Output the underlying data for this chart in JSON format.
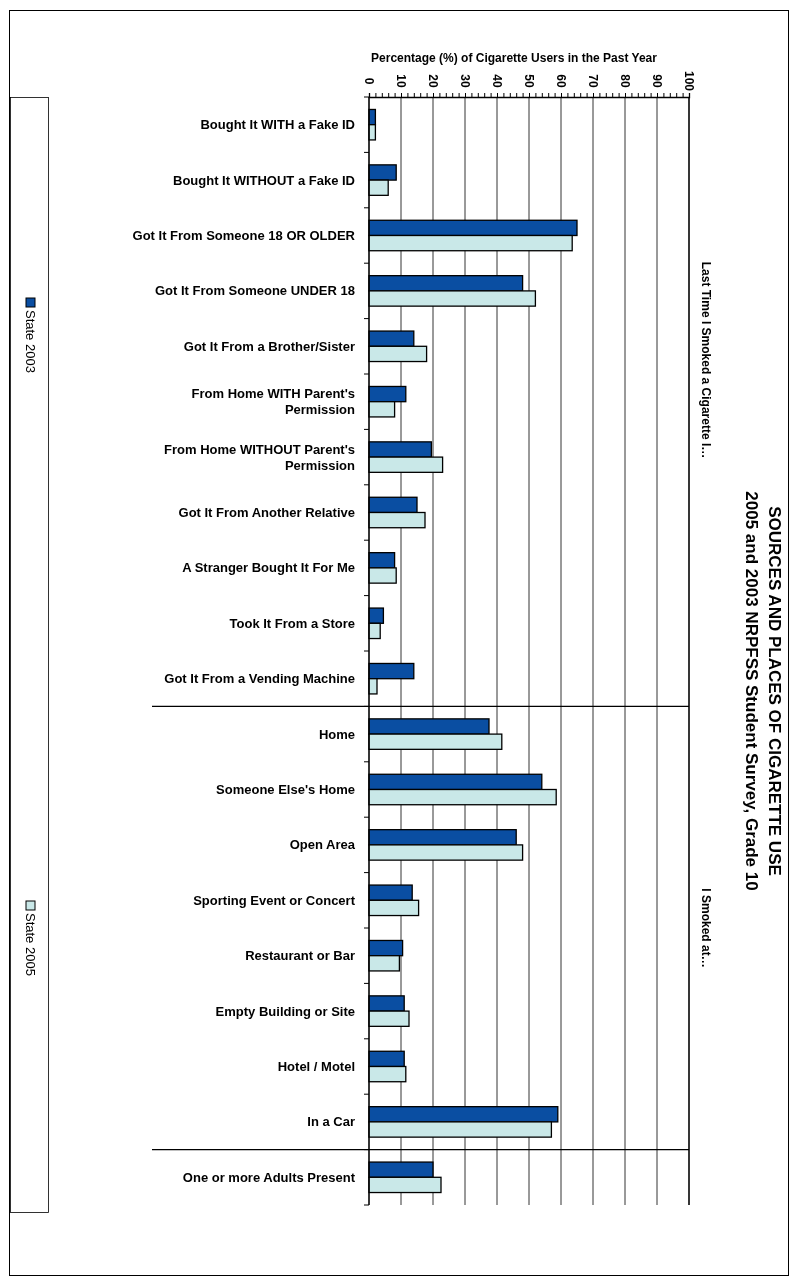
{
  "chart_data": {
    "type": "bar",
    "orientation": "horizontal",
    "title": "SOURCES AND PLACES OF CIGARETTE USE",
    "subtitle": "2005 and 2003 NRPFSS Student Survey, Grade 10",
    "xlabel": "Percentage (%) of Cigarette Users in the Past Year",
    "categories": [
      "Bought It WITH a Fake ID",
      "Bought It WITHOUT a Fake ID",
      "Got It From Someone 18 OR OLDER",
      "Got It From Someone UNDER 18",
      "Got It From a Brother/Sister",
      "From Home WITH Parent's Permission",
      "From Home WITHOUT Parent's Permission",
      "Got It From Another Relative",
      "A Stranger Bought It For Me",
      "Took It From a Store",
      "Got It From a Vending Machine",
      "Home",
      "Someone Else's Home",
      "Open Area",
      "Sporting Event or Concert",
      "Restaurant or Bar",
      "Empty Building or Site",
      "Hotel / Motel",
      "In a Car",
      "One or more Adults Present"
    ],
    "series": [
      {
        "name": "State 2003",
        "color": "#0a4ea2",
        "values": [
          2,
          8.5,
          65,
          48,
          14,
          11.5,
          19.5,
          15,
          8,
          4.5,
          14,
          37.5,
          54,
          46,
          13.5,
          10.5,
          11,
          11,
          59,
          20
        ]
      },
      {
        "name": "State 2005",
        "color": "#c9e8e8",
        "values": [
          2,
          6,
          63.5,
          52,
          18,
          8,
          23,
          17.5,
          8.5,
          3.5,
          2.5,
          41.5,
          58.5,
          48,
          15.5,
          9.5,
          12.5,
          11.5,
          57,
          22.5
        ]
      }
    ],
    "xlim": [
      0,
      100
    ],
    "xticks": [
      0,
      {
        "value": 2,
        "label": null
      },
      {
        "value": 4,
        "label": null
      },
      {
        "value": 6,
        "label": null
      },
      {
        "value": 8,
        "label": null
      },
      10,
      {
        "value": 12,
        "label": null
      },
      {
        "value": 14,
        "label": null
      },
      {
        "value": 16,
        "label": null
      },
      {
        "value": 18,
        "label": null
      },
      20,
      {
        "value": 22,
        "label": null
      },
      {
        "value": 24,
        "label": null
      },
      {
        "value": 26,
        "label": null
      },
      {
        "value": 28,
        "label": null
      },
      30,
      {
        "value": 32,
        "label": null
      },
      {
        "value": 34,
        "label": null
      },
      {
        "value": 36,
        "label": null
      },
      {
        "value": 38,
        "label": null
      },
      40,
      {
        "value": 42,
        "label": null
      },
      {
        "value": 44,
        "label": null
      },
      {
        "value": 46,
        "label": null
      },
      {
        "value": 48,
        "label": null
      },
      50,
      {
        "value": 52,
        "label": null
      },
      {
        "value": 54,
        "label": null
      },
      {
        "value": 56,
        "label": null
      },
      {
        "value": 58,
        "label": null
      },
      60,
      {
        "value": 62,
        "label": null
      },
      {
        "value": 64,
        "label": null
      },
      {
        "value": 66,
        "label": null
      },
      {
        "value": 68,
        "label": null
      },
      70,
      {
        "value": 72,
        "label": null
      },
      {
        "value": 74,
        "label": null
      },
      {
        "value": 76,
        "label": null
      },
      {
        "value": 78,
        "label": null
      },
      80,
      {
        "value": 82,
        "label": null
      },
      {
        "value": 84,
        "label": null
      },
      {
        "value": 86,
        "label": null
      },
      {
        "value": 88,
        "label": null
      },
      90,
      {
        "value": 92,
        "label": null
      },
      {
        "value": 94,
        "label": null
      },
      {
        "value": 96,
        "label": null
      },
      {
        "value": 98,
        "label": null
      },
      100
    ],
    "annotations": [
      "Last Time I Smoked a Cigarette I…",
      "I Smoked at…"
    ],
    "grid": "x",
    "legend": "left"
  }
}
